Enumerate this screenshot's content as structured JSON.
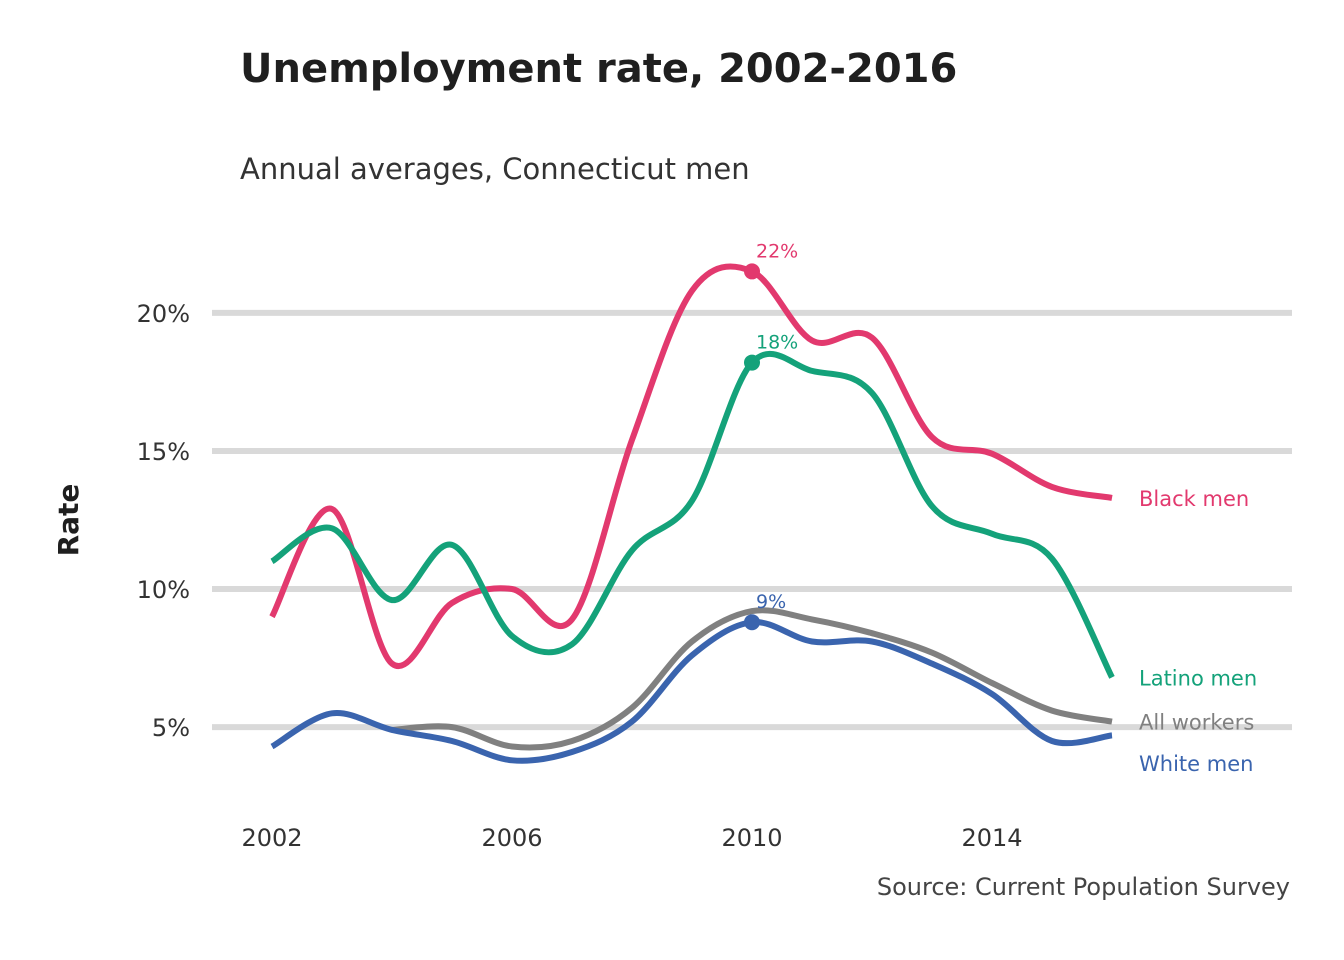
{
  "title": "Unemployment rate, 2002-2016",
  "subtitle": "Annual averages, Connecticut men",
  "source": "Source: Current Population Survey",
  "colors": {
    "black": "#e2396e",
    "latino": "#14a27a",
    "all": "#808080",
    "white": "#3a64ae",
    "grid": "#d9d9d9"
  },
  "chart_data": {
    "type": "line",
    "title": "Unemployment rate, 2002-2016",
    "subtitle": "Annual averages, Connecticut men",
    "xlabel": "",
    "ylabel": "Rate",
    "x": [
      2002,
      2003,
      2004,
      2005,
      2006,
      2007,
      2008,
      2009,
      2010,
      2011,
      2012,
      2013,
      2014,
      2015,
      2016
    ],
    "xlim": [
      2001,
      2019
    ],
    "ylim": [
      2,
      23
    ],
    "xticks": [
      2002,
      2006,
      2010,
      2014
    ],
    "xtick_labels": [
      "2002",
      "2006",
      "2010",
      "2014"
    ],
    "yticks": [
      5,
      10,
      15,
      20
    ],
    "ytick_labels": [
      "5%",
      "10%",
      "15%",
      "20%"
    ],
    "grid": "horizontal",
    "series": [
      {
        "key": "black",
        "name": "Black men",
        "values": [
          9.0,
          12.9,
          7.3,
          9.5,
          10.0,
          8.9,
          15.4,
          20.8,
          21.5,
          19.0,
          19.1,
          15.5,
          14.9,
          13.7,
          13.3
        ]
      },
      {
        "key": "latino",
        "name": "Latino men",
        "values": [
          11.0,
          12.2,
          9.6,
          11.6,
          8.3,
          8.0,
          11.4,
          13.2,
          18.2,
          17.9,
          17.1,
          13.0,
          12.0,
          11.1,
          6.8
        ]
      },
      {
        "key": "all",
        "name": "All workers",
        "values": [
          null,
          null,
          4.9,
          5.0,
          4.3,
          4.5,
          5.7,
          8.1,
          9.2,
          8.9,
          8.4,
          7.7,
          6.6,
          5.6,
          5.2
        ]
      },
      {
        "key": "white",
        "name": "White men",
        "values": [
          4.3,
          5.5,
          4.9,
          4.5,
          3.8,
          4.1,
          5.2,
          7.6,
          8.8,
          8.1,
          8.1,
          7.3,
          6.2,
          4.5,
          4.7
        ]
      }
    ],
    "annotations": [
      {
        "series": "black",
        "x": 2010,
        "y": 21.5,
        "label": "22%"
      },
      {
        "series": "latino",
        "x": 2010,
        "y": 18.2,
        "label": "18%"
      },
      {
        "series": "white",
        "x": 2010,
        "y": 8.8,
        "label": "9%"
      }
    ],
    "end_labels": [
      {
        "series": "black",
        "label": "Black men",
        "y": 13.3
      },
      {
        "series": "latino",
        "label": "Latino men",
        "y": 6.8
      },
      {
        "series": "all",
        "label": "All workers",
        "y": 5.2
      },
      {
        "series": "white",
        "label": "White men",
        "y": 3.7
      }
    ]
  }
}
